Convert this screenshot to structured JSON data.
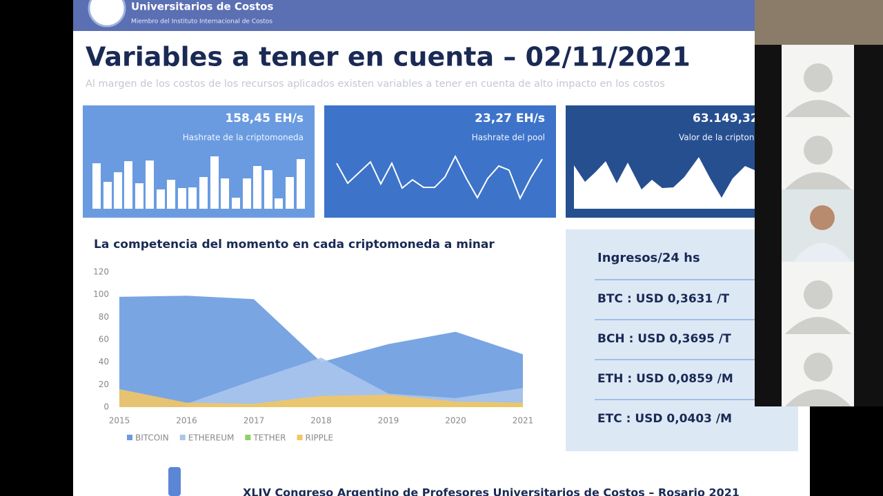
{
  "header": {
    "org": "Universitarios de Costos",
    "member": "Miembro del Instituto Internacional de Costos"
  },
  "title": "Variables a tener en cuenta – 02/11/2021",
  "subtitle": "Al margen de los costos de los recursos aplicados existen variables a tener en cuenta de alto impacto en los costos",
  "cards": [
    {
      "value": "158,45 EH/s",
      "label": "Hashrate de la criptomoneda"
    },
    {
      "value": "23,27 EH/s",
      "label": "Hashrate del pool"
    },
    {
      "value": "63.149,32",
      "label": "Valor de la cripton"
    }
  ],
  "panel": {
    "title": "Ingresos/24 hs",
    "items": [
      "BTC : USD 0,3631 /T",
      "BCH : USD 0,3695 /T",
      "ETH :  USD 0,0859 /M",
      "ETC : USD 0,0403 /M"
    ]
  },
  "footer": "XLIV Congreso Argentino de Profesores Universitarios de Costos – Rosario 2021",
  "chart_data": {
    "type": "area",
    "title": "La competencia del momento en cada criptomoneda a minar",
    "categories": [
      "2015",
      "2016",
      "2017",
      "2018",
      "2019",
      "2020",
      "2021"
    ],
    "series": [
      {
        "name": "BITCOIN",
        "color": "#6a9be0",
        "values": [
          98,
          99,
          96,
          40,
          56,
          67,
          47
        ]
      },
      {
        "name": "ETHEREUM",
        "color": "#a9c5ec",
        "values": [
          null,
          3,
          24,
          44,
          12,
          8,
          17
        ]
      },
      {
        "name": "TETHER",
        "color": "#8fcf6a",
        "values": [
          0,
          0,
          2,
          2,
          2,
          2,
          3
        ]
      },
      {
        "name": "RIPPLE",
        "color": "#f2c765",
        "values": [
          16,
          4,
          3,
          10,
          11,
          5,
          4
        ]
      }
    ],
    "ylim": [
      0,
      120
    ],
    "yticks": [
      0,
      20,
      40,
      60,
      80,
      100,
      120
    ],
    "legend": "bottom"
  }
}
